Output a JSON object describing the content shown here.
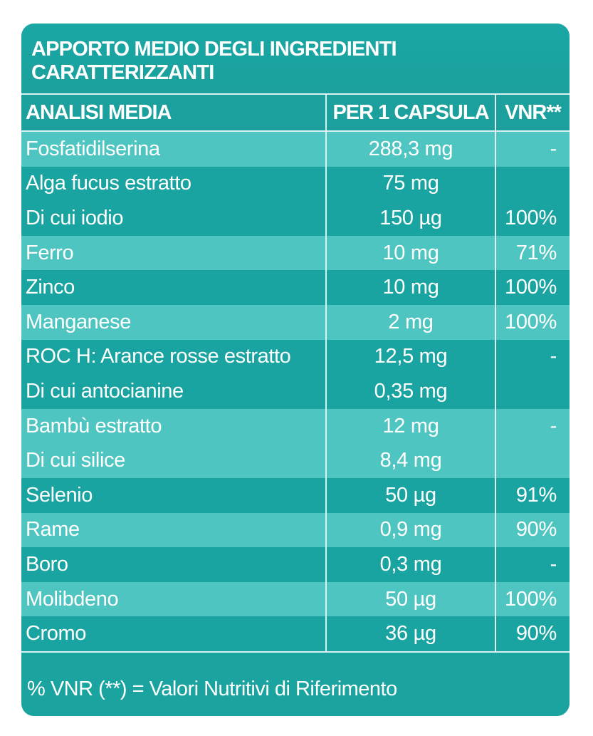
{
  "header": {
    "title_line1": "APPORTO MEDIO DEGLI INGREDIENTI",
    "title_line2": "CARATTERIZZANTI"
  },
  "table": {
    "columns": [
      "ANALISI MEDIA",
      "PER 1 CAPSULA",
      "VNR**"
    ],
    "rows": [
      [
        "Fosfatidilserina",
        "288,3 mg",
        "-"
      ],
      [
        "Alga fucus estratto",
        "75 mg",
        ""
      ],
      [
        "Di cui iodio",
        "150 µg",
        "100%"
      ],
      [
        "Ferro",
        "10 mg",
        "71%"
      ],
      [
        "Zinco",
        "10 mg",
        "100%"
      ],
      [
        "Manganese",
        "2 mg",
        "100%"
      ],
      [
        "ROC H: Arance rosse estratto",
        "12,5 mg",
        "-"
      ],
      [
        "Di cui antocianine",
        "0,35 mg",
        ""
      ],
      [
        "Bambù estratto",
        "12 mg",
        "-"
      ],
      [
        "Di cui silice",
        "8,4 mg",
        ""
      ],
      [
        "Selenio",
        "50 µg",
        "91%"
      ],
      [
        "Rame",
        "0,9 mg",
        "90%"
      ],
      [
        "Boro",
        "0,3 mg",
        "-"
      ],
      [
        "Molibdeno",
        "50 µg",
        "100%"
      ],
      [
        "Cromo",
        "36 µg",
        "90%"
      ]
    ]
  },
  "footer": {
    "note": "% VNR (**) = Valori Nutritivi di Riferimento"
  },
  "colors": {
    "teal_dark": "#1aa4a1",
    "teal_light": "#4fc5c1",
    "text": "#ffffff",
    "divider": "#d9f3f2"
  }
}
